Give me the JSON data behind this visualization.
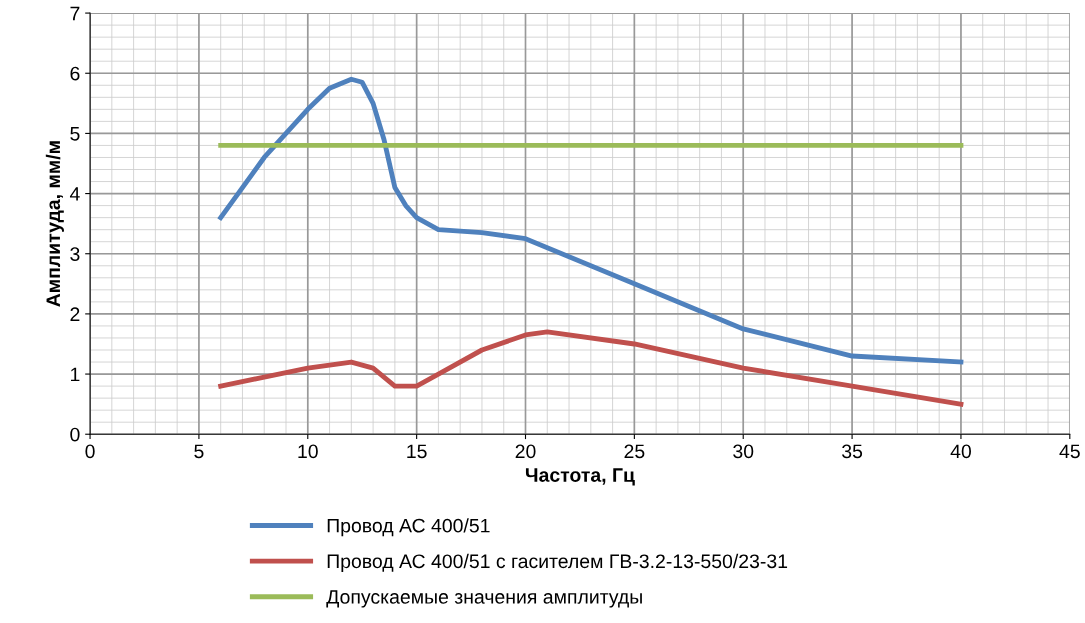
{
  "chart_data": {
    "type": "line",
    "xlabel": "Частота, Гц",
    "ylabel": "Амплитуда, мм/м",
    "xlim": [
      0,
      45
    ],
    "xticks": [
      0,
      5,
      10,
      15,
      20,
      25,
      30,
      35,
      40,
      45
    ],
    "ylim": [
      0,
      7
    ],
    "yticks": [
      0,
      1,
      2,
      3,
      4,
      5,
      6,
      7
    ],
    "grid": true,
    "legend": "bottom",
    "marker": "none",
    "line_style": "solid",
    "series": [
      {
        "name": "Провод АС 400/51",
        "color": "#4f81bd",
        "x": [
          6,
          7,
          8,
          9,
          10,
          11,
          12,
          12.5,
          13,
          13.5,
          14,
          14.5,
          15,
          16,
          18,
          20,
          25,
          30,
          35,
          40
        ],
        "values": [
          3.6,
          4.1,
          4.6,
          5.0,
          5.4,
          5.75,
          5.9,
          5.85,
          5.5,
          4.9,
          4.1,
          3.8,
          3.6,
          3.4,
          3.35,
          3.25,
          2.5,
          1.75,
          1.3,
          1.2
        ]
      },
      {
        "name": "Провод АС 400/51 с гасителем ГВ-3.2-13-550/23-31",
        "color": "#c0504d",
        "x": [
          6,
          8,
          10,
          12,
          13,
          14,
          15,
          16,
          18,
          20,
          21,
          25,
          30,
          35,
          40
        ],
        "values": [
          0.8,
          0.95,
          1.1,
          1.2,
          1.1,
          0.8,
          0.8,
          1.0,
          1.4,
          1.65,
          1.7,
          1.5,
          1.1,
          0.8,
          0.5
        ]
      },
      {
        "name": "Допускаемые значения амплитуды",
        "color": "#9bbb59",
        "x": [
          6,
          40
        ],
        "values": [
          4.8,
          4.8
        ]
      }
    ]
  }
}
